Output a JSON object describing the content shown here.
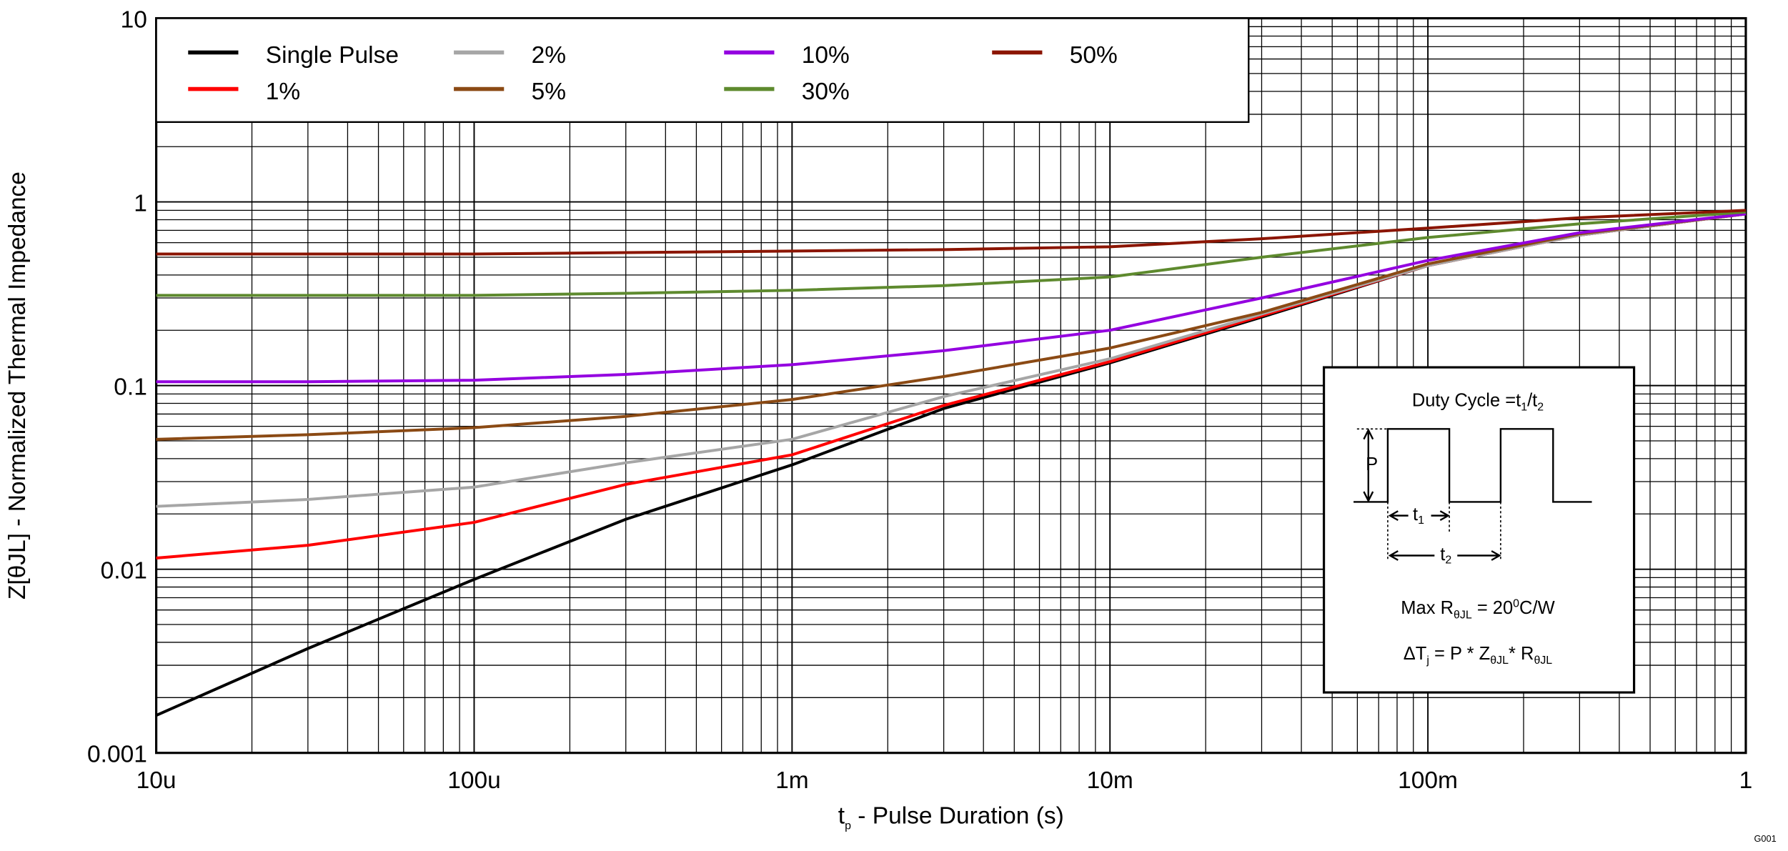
{
  "chart_data": {
    "type": "line",
    "xlabel": {
      "main": "t",
      "sub": "p",
      "rest": " - Pulse Duration (s)"
    },
    "ylabel": "Z[θJL] - Normalized Thermal Impedance",
    "xscale": "log",
    "yscale": "log",
    "xlim": [
      1e-05,
      1
    ],
    "ylim": [
      0.001,
      10
    ],
    "grid": true,
    "legend_position": "top-left",
    "x_ticks": [
      {
        "v": 1e-05,
        "label": "10u"
      },
      {
        "v": 0.0001,
        "label": "100u"
      },
      {
        "v": 0.001,
        "label": "1m"
      },
      {
        "v": 0.01,
        "label": "10m"
      },
      {
        "v": 0.1,
        "label": "100m"
      },
      {
        "v": 1,
        "label": "1"
      }
    ],
    "y_ticks": [
      {
        "v": 10,
        "label": "10"
      },
      {
        "v": 1,
        "label": "1"
      },
      {
        "v": 0.1,
        "label": "0.1"
      },
      {
        "v": 0.01,
        "label": "0.01"
      },
      {
        "v": 0.001,
        "label": "0.001"
      }
    ],
    "x": [
      1e-05,
      3e-05,
      0.0001,
      0.0003,
      0.001,
      0.003,
      0.01,
      0.03,
      0.1,
      0.3,
      1
    ],
    "series": [
      {
        "name": "Single Pulse",
        "color": "#000000",
        "values": [
          0.0016,
          0.0037,
          0.0088,
          0.0187,
          0.037,
          0.075,
          0.133,
          0.236,
          0.45,
          0.66,
          0.86
        ]
      },
      {
        "name": "1%",
        "color": "#ff0000",
        "values": [
          0.0115,
          0.0135,
          0.018,
          0.029,
          0.042,
          0.078,
          0.135,
          0.24,
          0.45,
          0.66,
          0.86
        ]
      },
      {
        "name": "2%",
        "color": "#a6a6a6",
        "values": [
          0.022,
          0.024,
          0.028,
          0.038,
          0.051,
          0.087,
          0.14,
          0.245,
          0.45,
          0.66,
          0.86
        ]
      },
      {
        "name": "5%",
        "color": "#8b4a14",
        "values": [
          0.051,
          0.054,
          0.059,
          0.068,
          0.084,
          0.112,
          0.16,
          0.25,
          0.46,
          0.67,
          0.86
        ]
      },
      {
        "name": "10%",
        "color": "#9400e0",
        "values": [
          0.105,
          0.105,
          0.107,
          0.115,
          0.13,
          0.155,
          0.2,
          0.3,
          0.48,
          0.68,
          0.86
        ]
      },
      {
        "name": "30%",
        "color": "#5e8a2e",
        "values": [
          0.31,
          0.31,
          0.31,
          0.318,
          0.33,
          0.35,
          0.39,
          0.5,
          0.64,
          0.76,
          0.88
        ]
      },
      {
        "name": "50%",
        "color": "#8b1500",
        "values": [
          0.52,
          0.52,
          0.52,
          0.53,
          0.54,
          0.55,
          0.57,
          0.63,
          0.72,
          0.82,
          0.9
        ]
      }
    ]
  },
  "inset": {
    "duty_cycle": {
      "text": "Duty Cycle =t",
      "s1": "1",
      "mid": "/t",
      "s2": "2"
    },
    "p_label": "P",
    "t1": {
      "t": "t",
      "s": "1"
    },
    "t2": {
      "t": "t",
      "s": "2"
    },
    "max_r": {
      "a": "Max R",
      "s": "θJL",
      "b": " = 20",
      "sup": "0",
      "c": "C/W"
    },
    "delta": {
      "a": "ΔT",
      "s1": "j",
      "b": " = P * Z",
      "s2": "θJL",
      "c": "* R",
      "s3": "θJL"
    }
  },
  "watermark": "G001"
}
